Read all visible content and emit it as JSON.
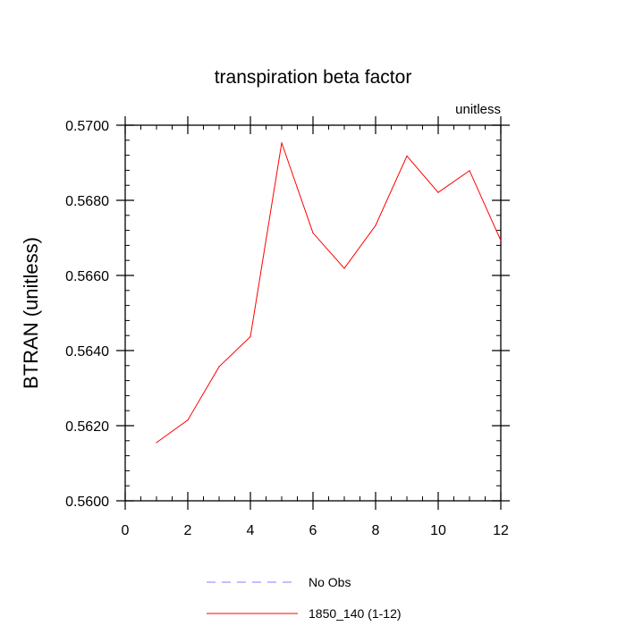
{
  "chart_data": {
    "type": "line",
    "title": "transpiration beta factor",
    "subtitle_right": "unitless",
    "xlabel": "",
    "ylabel": "BTRAN  (unitless)",
    "xlim": [
      0,
      12
    ],
    "ylim": [
      0.56,
      0.57
    ],
    "x_ticks": [
      0,
      2,
      4,
      6,
      8,
      10,
      12
    ],
    "x_tick_labels": [
      "0",
      "2",
      "4",
      "6",
      "8",
      "10",
      "12"
    ],
    "y_ticks": [
      0.56,
      0.562,
      0.564,
      0.566,
      0.568,
      0.57
    ],
    "y_tick_labels": [
      "0.5600",
      "0.5620",
      "0.5640",
      "0.5660",
      "0.5680",
      "0.5700"
    ],
    "grid": false,
    "legend_position": "bottom",
    "series": [
      {
        "name": "1850_140 (1-12)",
        "color": "#ff0000",
        "x": [
          1,
          2,
          3,
          4,
          5,
          6,
          7,
          8,
          9,
          10,
          11,
          12
        ],
        "y": [
          0.56155,
          0.56215,
          0.56357,
          0.56437,
          0.56953,
          0.56713,
          0.56619,
          0.56733,
          0.56918,
          0.56821,
          0.56879,
          0.56693
        ]
      }
    ],
    "legend": [
      {
        "label": "No Obs",
        "color": "#8080ff",
        "dash": true
      },
      {
        "label": "1850_140 (1-12)",
        "color": "#ff0000",
        "dash": false
      }
    ]
  }
}
